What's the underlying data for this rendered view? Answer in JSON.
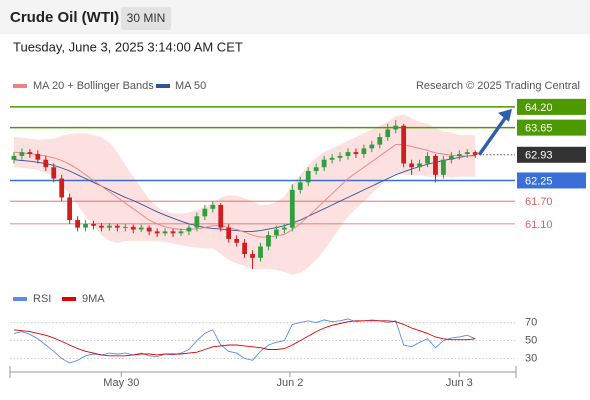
{
  "chart_data": {
    "type": "candlestick",
    "title": "Crude Oil (WTI)",
    "timeframe": "30 MIN",
    "subtitle": "Tuesday, June 3, 2025 3:14:00 AM CET",
    "source": "Research © 2025 Trading Central",
    "up_color": "#2e9e3e",
    "down_color": "#cc1f1f",
    "open": [
      62.8,
      62.9,
      63.0,
      62.95,
      62.8,
      62.6,
      62.3,
      61.8,
      61.2,
      61.0,
      61.1,
      61.05,
      61.0,
      61.05,
      61.0,
      61.02,
      60.95,
      61.0,
      60.9,
      60.85,
      60.9,
      60.85,
      60.9,
      61.0,
      61.3,
      61.5,
      61.6,
      61.0,
      60.7,
      60.6,
      60.3,
      60.2,
      60.5,
      60.8,
      60.95,
      61.0,
      62.0,
      62.2,
      62.5,
      62.6,
      62.8,
      62.85,
      62.9,
      63.0,
      62.95,
      63.1,
      63.2,
      63.4,
      63.6,
      63.7,
      62.7,
      62.6,
      62.7,
      62.9,
      62.4,
      62.8,
      62.9,
      62.95,
      63.0
    ],
    "high": [
      63.0,
      63.1,
      63.08,
      63.05,
      62.9,
      62.7,
      62.4,
      61.9,
      61.3,
      61.2,
      61.18,
      61.12,
      61.12,
      61.1,
      61.1,
      61.08,
      61.08,
      61.06,
      60.98,
      60.98,
      60.96,
      60.98,
      61.08,
      61.4,
      61.6,
      61.7,
      61.65,
      61.1,
      60.8,
      60.7,
      60.4,
      60.6,
      60.9,
      61.05,
      61.1,
      62.15,
      62.35,
      62.6,
      62.7,
      62.9,
      62.95,
      63.0,
      63.1,
      63.1,
      63.2,
      63.3,
      63.5,
      63.75,
      63.85,
      63.75,
      62.8,
      62.8,
      63.0,
      62.95,
      62.9,
      63.0,
      63.05,
      63.08,
      63.05
    ],
    "low": [
      62.7,
      62.8,
      62.85,
      62.7,
      62.5,
      62.2,
      61.7,
      61.1,
      60.9,
      60.9,
      60.95,
      60.9,
      60.92,
      60.9,
      60.9,
      60.85,
      60.88,
      60.8,
      60.75,
      60.78,
      60.75,
      60.78,
      60.8,
      60.9,
      61.2,
      61.4,
      60.9,
      60.6,
      60.5,
      60.2,
      59.9,
      60.1,
      60.4,
      60.7,
      60.85,
      60.9,
      61.9,
      62.1,
      62.4,
      62.5,
      62.7,
      62.75,
      62.8,
      62.85,
      62.85,
      63.0,
      63.1,
      63.3,
      63.5,
      62.6,
      62.4,
      62.5,
      62.6,
      62.2,
      62.3,
      62.7,
      62.8,
      62.85,
      62.85
    ],
    "close": [
      62.9,
      63.0,
      62.95,
      62.8,
      62.6,
      62.3,
      61.8,
      61.2,
      61.0,
      61.1,
      61.05,
      61.0,
      61.05,
      61.0,
      61.02,
      60.95,
      61.0,
      60.9,
      60.85,
      60.9,
      60.85,
      60.9,
      61.0,
      61.3,
      61.5,
      61.6,
      61.0,
      60.7,
      60.6,
      60.3,
      60.2,
      60.5,
      60.8,
      60.95,
      61.0,
      62.0,
      62.2,
      62.5,
      62.6,
      62.8,
      62.85,
      62.9,
      63.0,
      62.95,
      63.1,
      63.2,
      63.4,
      63.6,
      63.7,
      62.7,
      62.6,
      62.7,
      62.9,
      62.4,
      62.8,
      62.9,
      62.95,
      63.0,
      62.93
    ],
    "ma20": {
      "name": "MA 20 + Bollinger Bands",
      "color": "#f08080",
      "band_color": "#fde0e0",
      "values": [
        63.0,
        62.98,
        62.96,
        62.93,
        62.9,
        62.85,
        62.78,
        62.68,
        62.55,
        62.4,
        62.25,
        62.1,
        61.95,
        61.8,
        61.65,
        61.5,
        61.35,
        61.2,
        61.1,
        61.02,
        60.98,
        60.95,
        60.95,
        60.97,
        61.0,
        61.05,
        61.05,
        61.0,
        60.95,
        60.88,
        60.8,
        60.75,
        60.75,
        60.78,
        60.82,
        60.95,
        61.1,
        61.3,
        61.5,
        61.7,
        61.9,
        62.1,
        62.3,
        62.45,
        62.6,
        62.75,
        62.9,
        63.05,
        63.2,
        63.2,
        63.15,
        63.1,
        63.05,
        62.98,
        62.95,
        62.92,
        62.9,
        62.9,
        62.9
      ],
      "upper": [
        63.4,
        63.38,
        63.36,
        63.33,
        63.35,
        63.35,
        63.43,
        63.48,
        63.5,
        63.5,
        63.45,
        63.4,
        63.25,
        63.0,
        62.65,
        62.35,
        62.05,
        61.75,
        61.55,
        61.42,
        61.38,
        61.37,
        61.4,
        61.47,
        61.55,
        61.65,
        61.8,
        61.85,
        61.85,
        61.78,
        61.7,
        61.6,
        61.6,
        61.68,
        61.82,
        62.15,
        62.4,
        62.65,
        62.85,
        63.0,
        63.1,
        63.2,
        63.3,
        63.4,
        63.5,
        63.6,
        63.7,
        63.8,
        63.95,
        64.0,
        63.9,
        63.8,
        63.75,
        63.63,
        63.55,
        63.52,
        63.45,
        63.45,
        63.45
      ],
      "lower": [
        62.6,
        62.58,
        62.56,
        62.53,
        62.45,
        62.35,
        62.13,
        61.88,
        61.6,
        61.3,
        61.05,
        60.8,
        60.65,
        60.6,
        60.65,
        60.65,
        60.65,
        60.65,
        60.65,
        60.62,
        60.58,
        60.53,
        60.5,
        60.47,
        60.45,
        60.45,
        60.3,
        60.15,
        60.05,
        59.98,
        59.9,
        59.9,
        59.9,
        59.88,
        59.82,
        59.75,
        59.8,
        59.95,
        60.15,
        60.4,
        60.7,
        61.0,
        61.3,
        61.5,
        61.7,
        61.9,
        62.1,
        62.3,
        62.45,
        62.4,
        62.4,
        62.4,
        62.35,
        62.33,
        62.35,
        62.32,
        62.35,
        62.35,
        62.35
      ]
    },
    "ma50": {
      "name": "MA 50",
      "color": "#2f5597",
      "values": [
        62.8,
        62.78,
        62.76,
        62.73,
        62.7,
        62.65,
        62.58,
        62.5,
        62.4,
        62.3,
        62.2,
        62.1,
        62.0,
        61.9,
        61.8,
        61.72,
        61.62,
        61.52,
        61.42,
        61.33,
        61.25,
        61.17,
        61.1,
        61.05,
        61.0,
        60.98,
        60.96,
        60.94,
        60.92,
        60.9,
        60.9,
        60.92,
        60.96,
        61.0,
        61.05,
        61.12,
        61.2,
        61.3,
        61.4,
        61.5,
        61.6,
        61.7,
        61.8,
        61.9,
        62.0,
        62.1,
        62.2,
        62.3,
        62.4,
        62.48,
        62.55,
        62.62,
        62.68,
        62.73,
        62.78,
        62.82,
        62.86,
        62.9,
        62.92
      ]
    },
    "levels": [
      {
        "value": {
          "value": 64.2,
          "label": "64.20"
        },
        "color": "#4c9a00",
        "style": "box"
      },
      {
        "value": 63.65,
        "color": "#4c9a00",
        "style": "box"
      },
      {
        "value": 62.93,
        "color": "#333333",
        "style": "current"
      },
      {
        "value": 62.25,
        "color": "#3a6fd8",
        "style": "box"
      },
      {
        "value": {
          "value": 61.7,
          "label": "61.70"
        },
        "color": "#e06060",
        "style": "text"
      },
      {
        "value": {
          "value": 61.1,
          "label": "61.10"
        },
        "color": "#e06060",
        "style": "text"
      }
    ],
    "ylim": [
      59.4,
      64.7
    ],
    "xlim": [
      -0.5,
      63
    ],
    "xticks": [
      {
        "value": 13.5,
        "label": "May 30"
      },
      {
        "value": 34.7,
        "label": "Jun 2"
      },
      {
        "value": 56,
        "label": "Jun 3"
      }
    ],
    "rsi": {
      "name": "RSI",
      "color": "#5b8ee6",
      "values": [
        58,
        60,
        57,
        52,
        45,
        38,
        30,
        25,
        28,
        33,
        35,
        34,
        36,
        35,
        36,
        34,
        36,
        33,
        32,
        35,
        34,
        36,
        40,
        50,
        58,
        62,
        45,
        38,
        36,
        30,
        28,
        38,
        45,
        48,
        50,
        68,
        70,
        72,
        70,
        73,
        71,
        72,
        74,
        71,
        72,
        73,
        72,
        70,
        72,
        45,
        43,
        48,
        52,
        42,
        50,
        53,
        54,
        56,
        52
      ]
    },
    "rsi_ma": {
      "name": "9MA",
      "color": "#e00000",
      "values": [
        62,
        61,
        60,
        58,
        56,
        53,
        49,
        45,
        41,
        38,
        36,
        34,
        33,
        33,
        33,
        34,
        35,
        35,
        34,
        35,
        35,
        35,
        36,
        37,
        40,
        43,
        44,
        45,
        45,
        44,
        43,
        42,
        40,
        40,
        41,
        45,
        50,
        55,
        60,
        64,
        67,
        69,
        71,
        72,
        72,
        72,
        72,
        72,
        71,
        68,
        64,
        61,
        58,
        54,
        52,
        51,
        51,
        51,
        52
      ]
    },
    "rsi_ylim": [
      15,
      84
    ],
    "rsi_yticks": [
      30,
      50,
      70
    ]
  }
}
